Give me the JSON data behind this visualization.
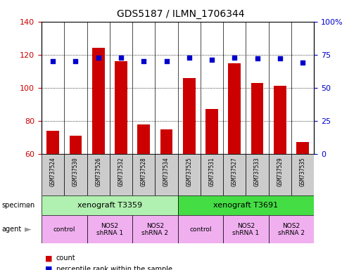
{
  "title": "GDS5187 / ILMN_1706344",
  "samples": [
    "GSM737524",
    "GSM737530",
    "GSM737526",
    "GSM737532",
    "GSM737528",
    "GSM737534",
    "GSM737525",
    "GSM737531",
    "GSM737527",
    "GSM737533",
    "GSM737529",
    "GSM737535"
  ],
  "counts": [
    74,
    71,
    124,
    116,
    78,
    75,
    106,
    87,
    115,
    103,
    101,
    67
  ],
  "percentile_ranks": [
    70,
    70,
    73,
    73,
    70,
    70,
    73,
    71,
    73,
    72,
    72,
    69
  ],
  "ylim_left": [
    60,
    140
  ],
  "ylim_right": [
    0,
    100
  ],
  "yticks_left": [
    60,
    80,
    100,
    120,
    140
  ],
  "yticks_right": [
    0,
    25,
    50,
    75,
    100
  ],
  "bar_color": "#cc0000",
  "dot_color": "#0000cc",
  "specimen_labels": [
    "xenograft T3359",
    "xenograft T3691"
  ],
  "specimen_spans": [
    [
      0,
      6
    ],
    [
      6,
      12
    ]
  ],
  "specimen_colors": [
    "#b0f0b0",
    "#44dd44"
  ],
  "agent_groups": [
    {
      "label": "control",
      "span": [
        0,
        2
      ],
      "color": "#f0b0f0"
    },
    {
      "label": "NOS2\nshRNA 1",
      "span": [
        2,
        4
      ],
      "color": "#f0b0f0"
    },
    {
      "label": "NOS2\nshRNA 2",
      "span": [
        4,
        6
      ],
      "color": "#f0b0f0"
    },
    {
      "label": "control",
      "span": [
        6,
        8
      ],
      "color": "#f0b0f0"
    },
    {
      "label": "NOS2\nshRNA 1",
      "span": [
        8,
        10
      ],
      "color": "#f0b0f0"
    },
    {
      "label": "NOS2\nshRNA 2",
      "span": [
        10,
        12
      ],
      "color": "#f0b0f0"
    }
  ],
  "tick_color_left": "#cc0000",
  "tick_color_right": "#0000cc",
  "right_ytick_labels": [
    "0",
    "25",
    "50",
    "75",
    "100%"
  ],
  "arrow_color": "#999999",
  "sample_bg_color": "#cccccc",
  "border_color": "#888888"
}
